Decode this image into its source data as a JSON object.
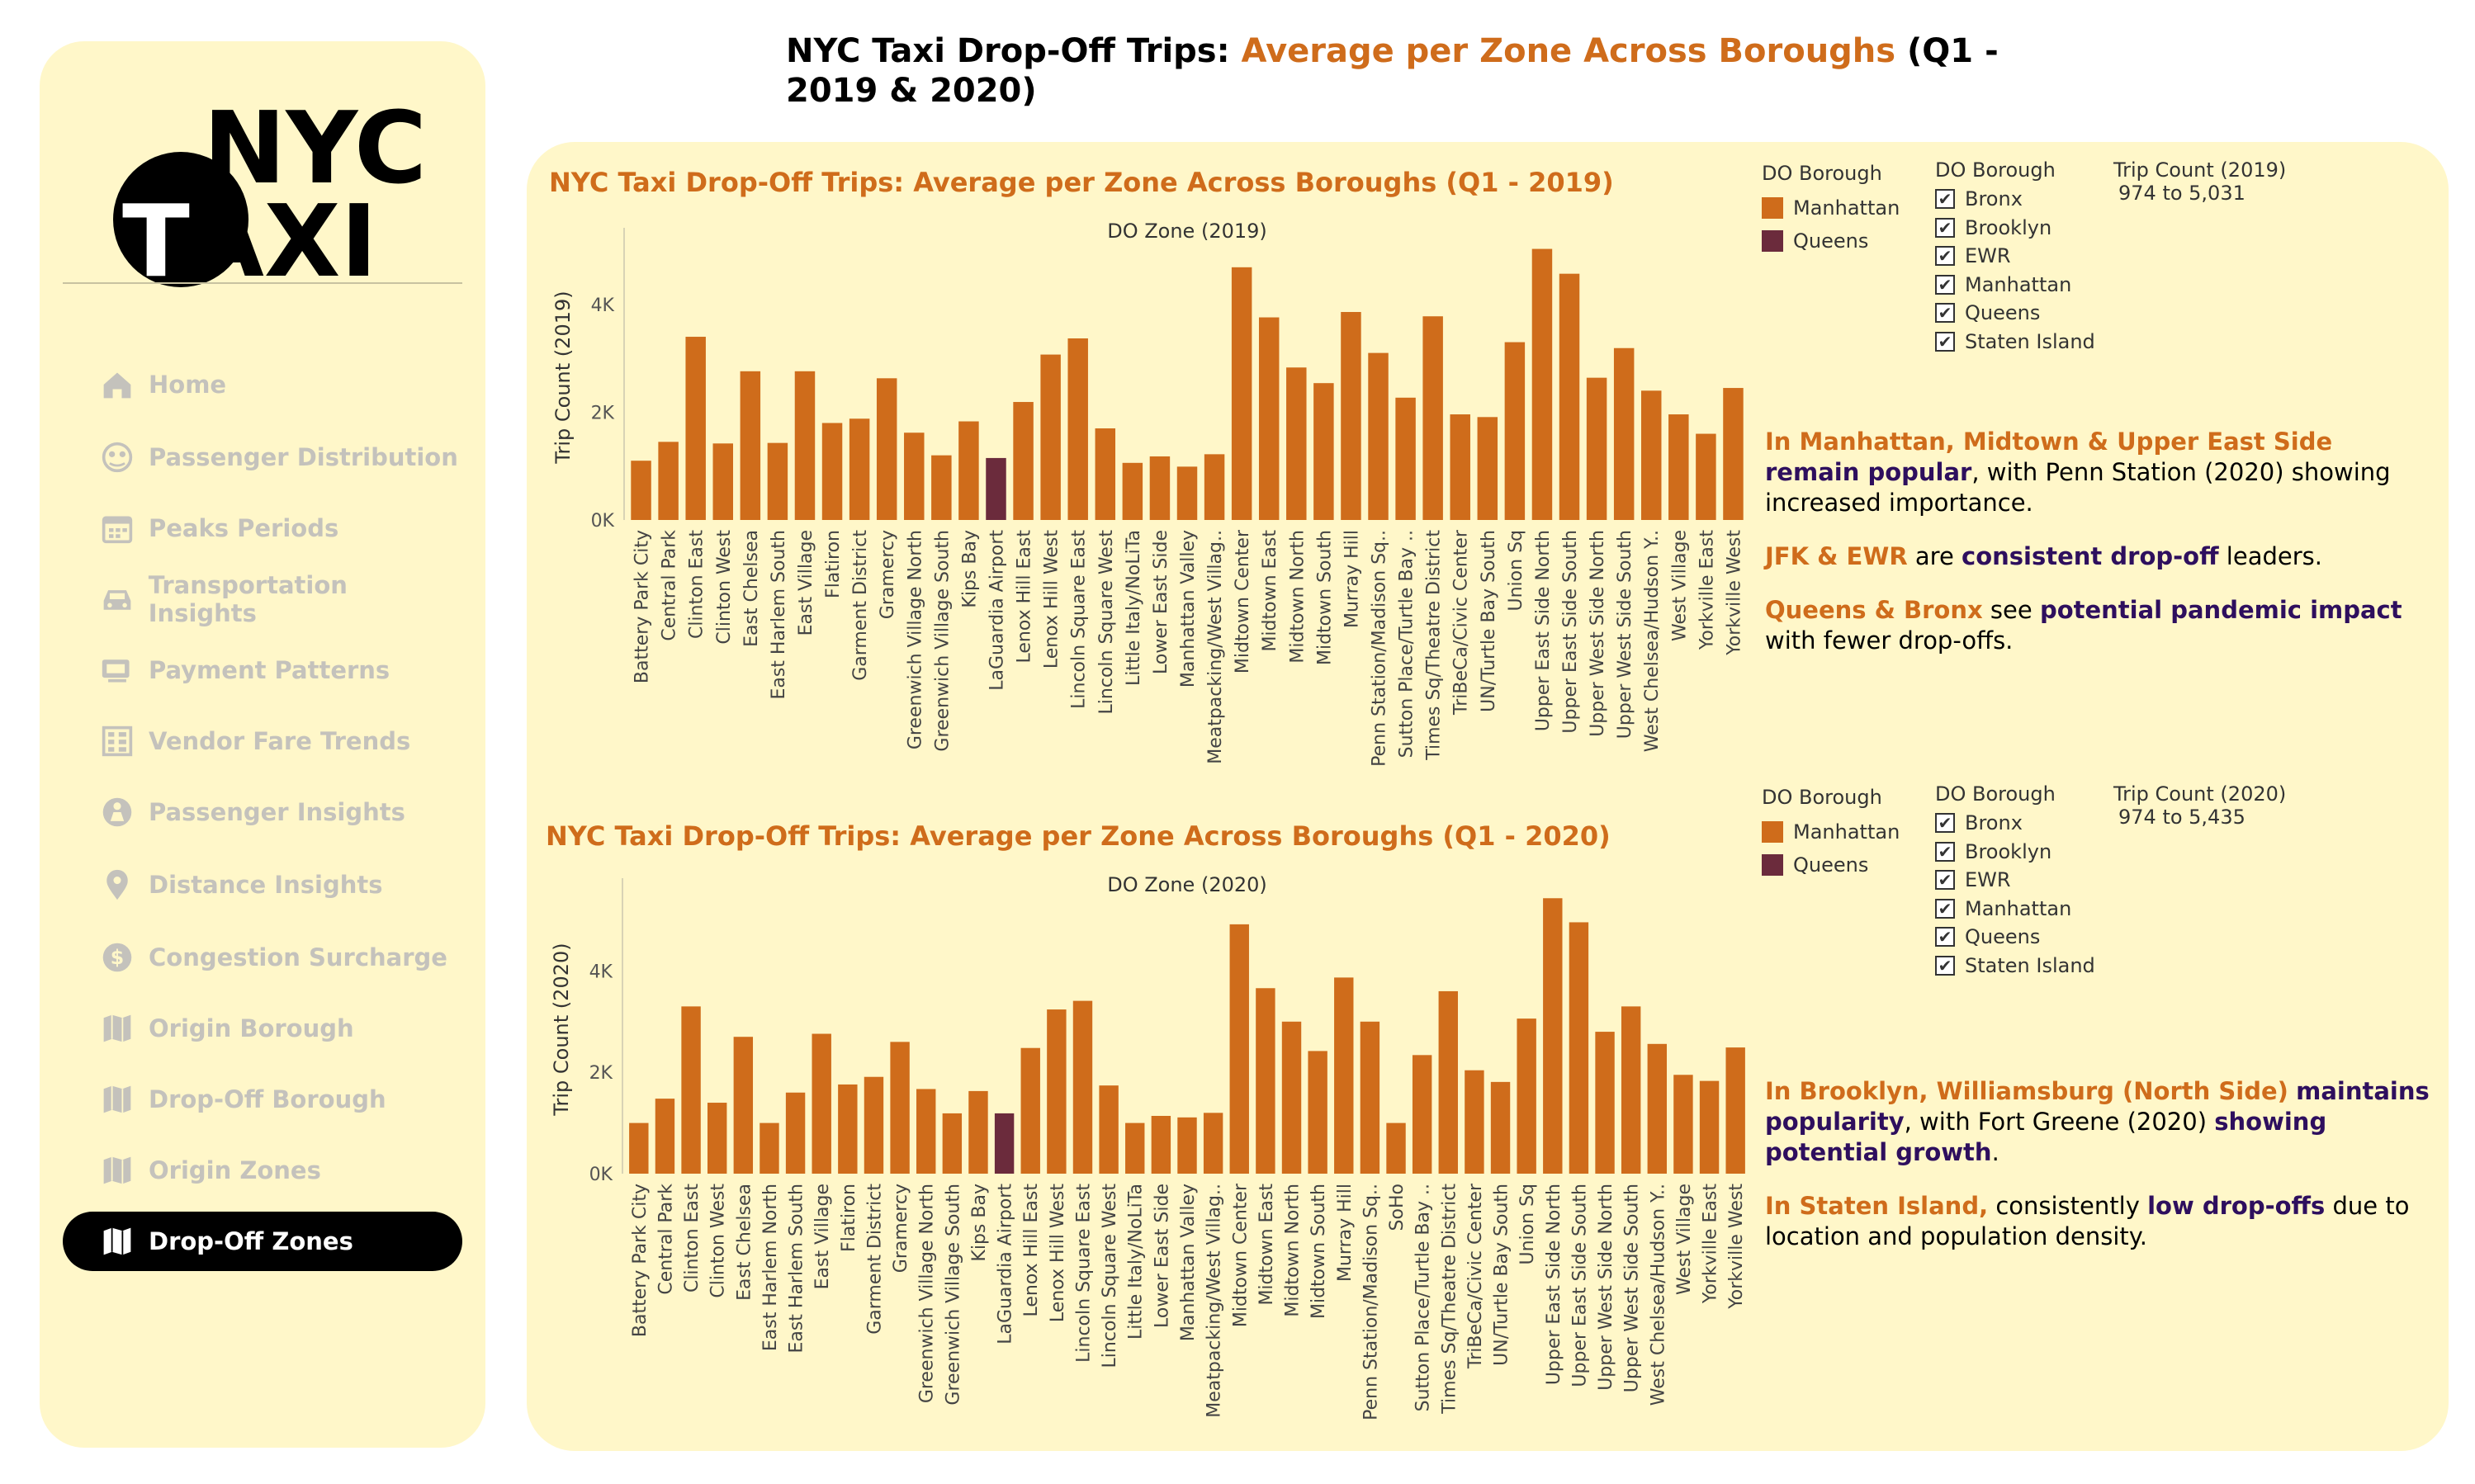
{
  "sidebar": {
    "logo": {
      "line1": "NYC",
      "line2": "TAXI"
    },
    "items": [
      {
        "label": "Home",
        "icon": "home-icon"
      },
      {
        "label": "Passenger Distribution",
        "icon": "passenger-icon"
      },
      {
        "label": "Peaks Periods",
        "icon": "calendar-icon"
      },
      {
        "label": "Transportation Insights",
        "icon": "car-icon"
      },
      {
        "label": "Payment Patterns",
        "icon": "payment-icon"
      },
      {
        "label": "Vendor Fare Trends",
        "icon": "building-icon"
      },
      {
        "label": "Passenger Insights",
        "icon": "person-icon"
      },
      {
        "label": "Distance Insights",
        "icon": "location-pin-icon"
      },
      {
        "label": "Congestion Surcharge",
        "icon": "dollar-icon"
      },
      {
        "label": "Origin Borough",
        "icon": "map-icon"
      },
      {
        "label": "Drop-Off Borough",
        "icon": "map-icon"
      },
      {
        "label": "Origin Zones",
        "icon": "map-icon"
      },
      {
        "label": "Drop-Off Zones",
        "icon": "map-icon",
        "active": true
      }
    ]
  },
  "header": {
    "title_prefix": "NYC Taxi Drop-Off Trips: ",
    "title_accent": "Average per Zone Across Boroughs",
    "title_suffix": " (Q1 - 2019 & 2020)"
  },
  "colors": {
    "manhattan": "#cf6c1b",
    "queens": "#6b2b3c",
    "accent": "#cf6c1b",
    "highlight": "#2e0f5e",
    "background": "#fff7c9"
  },
  "legend": {
    "title": "DO Borough",
    "items": [
      {
        "label": "Manhattan",
        "color": "#cf6c1b"
      },
      {
        "label": "Queens",
        "color": "#6b2b3c"
      }
    ]
  },
  "filter": {
    "title": "DO Borough",
    "items": [
      "Bronx",
      "Brooklyn",
      "EWR",
      "Manhattan",
      "Queens",
      "Staten Island"
    ]
  },
  "range2019": {
    "title": "Trip Count (2019)",
    "value": "974 to 5,031"
  },
  "range2020": {
    "title": "Trip Count (2020)",
    "value": "974 to 5,435"
  },
  "insights2019": [
    [
      {
        "t": "In Manhattan, Midtown & Upper East Side",
        "c": "o"
      },
      {
        "t": " ",
        "c": ""
      },
      {
        "t": "remain popular",
        "c": "p"
      },
      {
        "t": ", with Penn Station (2020) showing increased importance.",
        "c": ""
      }
    ],
    [
      {
        "t": "JFK & EWR",
        "c": "o"
      },
      {
        "t": " are ",
        "c": ""
      },
      {
        "t": "consistent drop-off",
        "c": "p"
      },
      {
        "t": " leaders.",
        "c": ""
      }
    ],
    [
      {
        "t": "Queens & Bronx",
        "c": "o"
      },
      {
        "t": " see ",
        "c": ""
      },
      {
        "t": "potential pandemic impact",
        "c": "p"
      },
      {
        "t": " with fewer drop-offs.",
        "c": ""
      }
    ]
  ],
  "insights2020": [
    [
      {
        "t": "In Brooklyn, Williamsburg (North Side)",
        "c": "o"
      },
      {
        "t": " ",
        "c": ""
      },
      {
        "t": "maintains popularity",
        "c": "p"
      },
      {
        "t": ", with Fort Greene (2020) ",
        "c": ""
      },
      {
        "t": "showing potential growth",
        "c": "p"
      },
      {
        "t": ".",
        "c": ""
      }
    ],
    [
      {
        "t": "In Staten Island,",
        "c": "o"
      },
      {
        "t": " consistently ",
        "c": ""
      },
      {
        "t": "low drop-offs",
        "c": "p"
      },
      {
        "t": " due to location and population density.",
        "c": ""
      }
    ]
  ],
  "chart_data": [
    {
      "type": "bar",
      "title": "NYC Taxi Drop-Off Trips: Average per Zone Across Boroughs (Q1 - 2019)",
      "xlabel": "DO Zone (2019)",
      "ylabel": "Trip Count (2019)",
      "ylim": [
        0,
        5300
      ],
      "yticks": [
        0,
        2000,
        4000
      ],
      "yticklabels": [
        "0K",
        "2K",
        "4K"
      ],
      "categories": [
        "Battery Park City",
        "Central Park",
        "Clinton East",
        "Clinton West",
        "East Chelsea",
        "East Harlem South",
        "East Village",
        "Flatiron",
        "Garment District",
        "Gramercy",
        "Greenwich Village North",
        "Greenwich Village South",
        "Kips Bay",
        "LaGuardia Airport",
        "Lenox Hill East",
        "Lenox Hill West",
        "Lincoln Square East",
        "Lincoln Square West",
        "Little Italy/NoLiTa",
        "Lower East Side",
        "Manhattan Valley",
        "Meatpacking/West Villag..",
        "Midtown Center",
        "Midtown East",
        "Midtown North",
        "Midtown South",
        "Murray Hill",
        "Penn Station/Madison Sq..",
        "Sutton Place/Turtle Bay ..",
        "Times Sq/Theatre District",
        "TriBeCa/Civic Center",
        "UN/Turtle Bay South",
        "Union Sq",
        "Upper East Side North",
        "Upper East Side South",
        "Upper West Side North",
        "Upper West Side South",
        "West Chelsea/Hudson Y..",
        "West Village",
        "Yorkville East",
        "Yorkville West"
      ],
      "values": [
        1100,
        1450,
        3400,
        1420,
        2760,
        1430,
        2760,
        1800,
        1880,
        2630,
        1620,
        1200,
        1830,
        1150,
        2190,
        3070,
        3370,
        1700,
        1060,
        1180,
        990,
        1220,
        4690,
        3760,
        2830,
        2540,
        3860,
        3100,
        2270,
        3780,
        1960,
        1910,
        3300,
        5031,
        4570,
        2640,
        3190,
        2400,
        1960,
        1600,
        2450
      ],
      "boroughs": [
        "Manhattan",
        "Manhattan",
        "Manhattan",
        "Manhattan",
        "Manhattan",
        "Manhattan",
        "Manhattan",
        "Manhattan",
        "Manhattan",
        "Manhattan",
        "Manhattan",
        "Manhattan",
        "Manhattan",
        "Queens",
        "Manhattan",
        "Manhattan",
        "Manhattan",
        "Manhattan",
        "Manhattan",
        "Manhattan",
        "Manhattan",
        "Manhattan",
        "Manhattan",
        "Manhattan",
        "Manhattan",
        "Manhattan",
        "Manhattan",
        "Manhattan",
        "Manhattan",
        "Manhattan",
        "Manhattan",
        "Manhattan",
        "Manhattan",
        "Manhattan",
        "Manhattan",
        "Manhattan",
        "Manhattan",
        "Manhattan",
        "Manhattan",
        "Manhattan",
        "Manhattan"
      ]
    },
    {
      "type": "bar",
      "title": "NYC Taxi Drop-Off Trips: Average per Zone Across Boroughs (Q1 - 2020)",
      "xlabel": "DO Zone (2020)",
      "ylabel": "Trip Count (2020)",
      "ylim": [
        0,
        5700
      ],
      "yticks": [
        0,
        2000,
        4000
      ],
      "yticklabels": [
        "0K",
        "2K",
        "4K"
      ],
      "categories": [
        "Battery Park City",
        "Central Park",
        "Clinton East",
        "Clinton West",
        "East Chelsea",
        "East Harlem North",
        "East Harlem South",
        "East Village",
        "Flatiron",
        "Garment District",
        "Gramercy",
        "Greenwich Village North",
        "Greenwich Village South",
        "Kips Bay",
        "LaGuardia Airport",
        "Lenox Hill East",
        "Lenox Hill West",
        "Lincoln Square East",
        "Lincoln Square West",
        "Little Italy/NoLiTa",
        "Lower East Side",
        "Manhattan Valley",
        "Meatpacking/West Villag..",
        "Midtown Center",
        "Midtown East",
        "Midtown North",
        "Midtown South",
        "Murray Hill",
        "Penn Station/Madison Sq..",
        "SoHo",
        "Sutton Place/Turtle Bay ..",
        "Times Sq/Theatre District",
        "TriBeCa/Civic Center",
        "UN/Turtle Bay South",
        "Union Sq",
        "Upper East Side North",
        "Upper East Side South",
        "Upper West Side North",
        "Upper West Side South",
        "West Chelsea/Hudson Y..",
        "West Village",
        "Yorkville East",
        "Yorkville West"
      ],
      "values": [
        1000,
        1480,
        3300,
        1400,
        2700,
        1000,
        1600,
        2760,
        1760,
        1910,
        2600,
        1670,
        1190,
        1630,
        1190,
        2480,
        3240,
        3410,
        1740,
        1000,
        1140,
        1110,
        1200,
        4920,
        3660,
        3000,
        2420,
        3870,
        3000,
        1000,
        2340,
        3600,
        2040,
        1810,
        3060,
        5435,
        4960,
        2800,
        3300,
        2560,
        1950,
        1830,
        2490
      ],
      "boroughs": [
        "Manhattan",
        "Manhattan",
        "Manhattan",
        "Manhattan",
        "Manhattan",
        "Manhattan",
        "Manhattan",
        "Manhattan",
        "Manhattan",
        "Manhattan",
        "Manhattan",
        "Manhattan",
        "Manhattan",
        "Manhattan",
        "Queens",
        "Manhattan",
        "Manhattan",
        "Manhattan",
        "Manhattan",
        "Manhattan",
        "Manhattan",
        "Manhattan",
        "Manhattan",
        "Manhattan",
        "Manhattan",
        "Manhattan",
        "Manhattan",
        "Manhattan",
        "Manhattan",
        "Manhattan",
        "Manhattan",
        "Manhattan",
        "Manhattan",
        "Manhattan",
        "Manhattan",
        "Manhattan",
        "Manhattan",
        "Manhattan",
        "Manhattan",
        "Manhattan",
        "Manhattan",
        "Manhattan",
        "Manhattan"
      ]
    }
  ]
}
